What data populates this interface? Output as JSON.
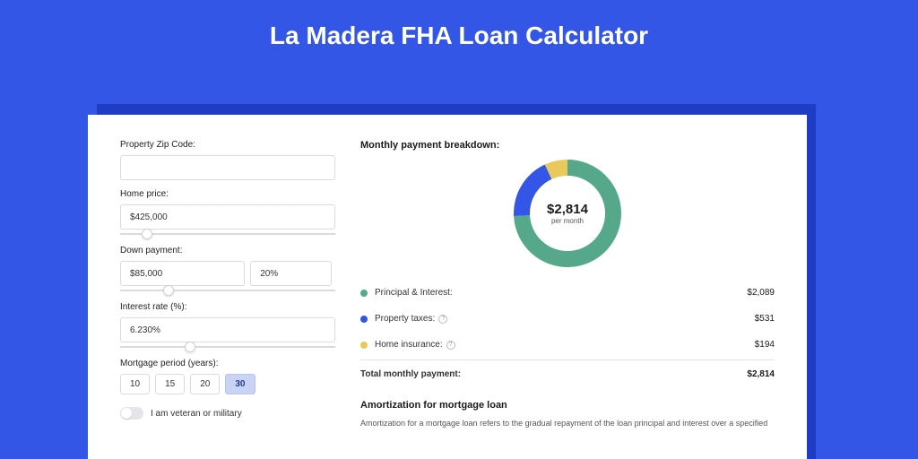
{
  "page": {
    "title": "La Madera FHA Loan Calculator",
    "background_color": "#3456e6",
    "shadow_color": "#1f3cc5",
    "panel_color": "#ffffff"
  },
  "form": {
    "zip": {
      "label": "Property Zip Code:",
      "value": ""
    },
    "home_price": {
      "label": "Home price:",
      "value": "$425,000",
      "slider_pos": 0.1
    },
    "down_payment": {
      "label": "Down payment:",
      "value": "$85,000",
      "pct": "20%",
      "slider_pos": 0.2
    },
    "interest_rate": {
      "label": "Interest rate (%):",
      "value": "6.230%",
      "slider_pos": 0.3
    },
    "mortgage_period": {
      "label": "Mortgage period (years):",
      "options": [
        "10",
        "15",
        "20",
        "30"
      ],
      "active_index": 3
    },
    "veteran": {
      "label": "I am veteran or military",
      "on": false
    }
  },
  "breakdown": {
    "title": "Monthly payment breakdown:",
    "donut": {
      "amount": "$2,814",
      "sub": "per month",
      "slices": [
        {
          "color": "#55a98a",
          "pct": 74.2
        },
        {
          "color": "#3456e6",
          "pct": 18.9
        },
        {
          "color": "#e9c95c",
          "pct": 6.9
        }
      ],
      "ring_width": 18,
      "size": 120,
      "bg": "#ffffff"
    },
    "items": [
      {
        "dot": "#55a98a",
        "label": "Principal & Interest:",
        "info": false,
        "value": "$2,089"
      },
      {
        "dot": "#3456e6",
        "label": "Property taxes:",
        "info": true,
        "value": "$531"
      },
      {
        "dot": "#e9c95c",
        "label": "Home insurance:",
        "info": true,
        "value": "$194"
      }
    ],
    "total": {
      "label": "Total monthly payment:",
      "value": "$2,814"
    }
  },
  "amortization": {
    "title": "Amortization for mortgage loan",
    "text": "Amortization for a mortgage loan refers to the gradual repayment of the loan principal and interest over a specified"
  }
}
